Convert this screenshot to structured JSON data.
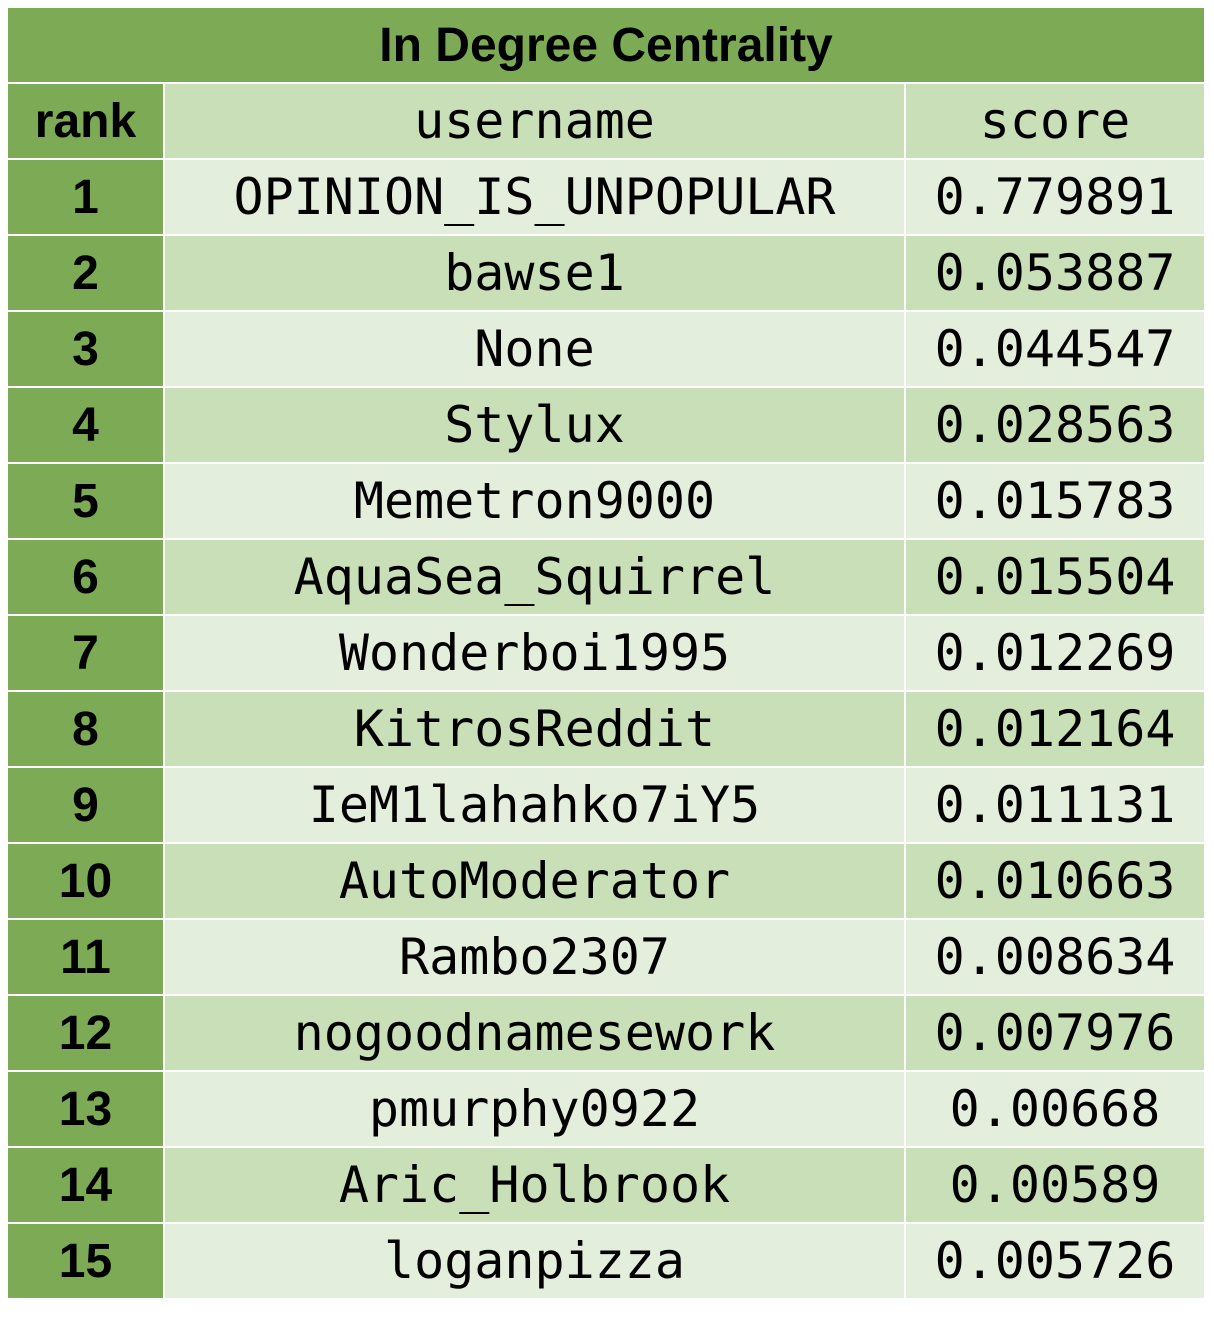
{
  "table": {
    "title": "In Degree Centrality",
    "headers": {
      "rank": "rank",
      "username": "username",
      "score": "score"
    },
    "rows": [
      {
        "rank": "1",
        "username": "OPINION_IS_UNPOPULAR",
        "score": "0.779891"
      },
      {
        "rank": "2",
        "username": "bawse1",
        "score": "0.053887"
      },
      {
        "rank": "3",
        "username": "None",
        "score": "0.044547"
      },
      {
        "rank": "4",
        "username": "Stylux",
        "score": "0.028563"
      },
      {
        "rank": "5",
        "username": "Memetron9000",
        "score": "0.015783"
      },
      {
        "rank": "6",
        "username": "AquaSea_Squirrel",
        "score": "0.015504"
      },
      {
        "rank": "7",
        "username": "Wonderboi1995",
        "score": "0.012269"
      },
      {
        "rank": "8",
        "username": "KitrosReddit",
        "score": "0.012164"
      },
      {
        "rank": "9",
        "username": "IeM1lahahko7iY5",
        "score": "0.011131"
      },
      {
        "rank": "10",
        "username": "AutoModerator",
        "score": "0.010663"
      },
      {
        "rank": "11",
        "username": "Rambo2307",
        "score": "0.008634"
      },
      {
        "rank": "12",
        "username": "nogoodnamesework",
        "score": "0.007976"
      },
      {
        "rank": "13",
        "username": "pmurphy0922",
        "score": "0.00668"
      },
      {
        "rank": "14",
        "username": "Aric_Holbrook",
        "score": "0.00589"
      },
      {
        "rank": "15",
        "username": "loganpizza",
        "score": "0.005726"
      }
    ]
  },
  "colors": {
    "dark_green": "#7daa55",
    "mid_green": "#c8dfb8",
    "light_green": "#e4eedc"
  }
}
